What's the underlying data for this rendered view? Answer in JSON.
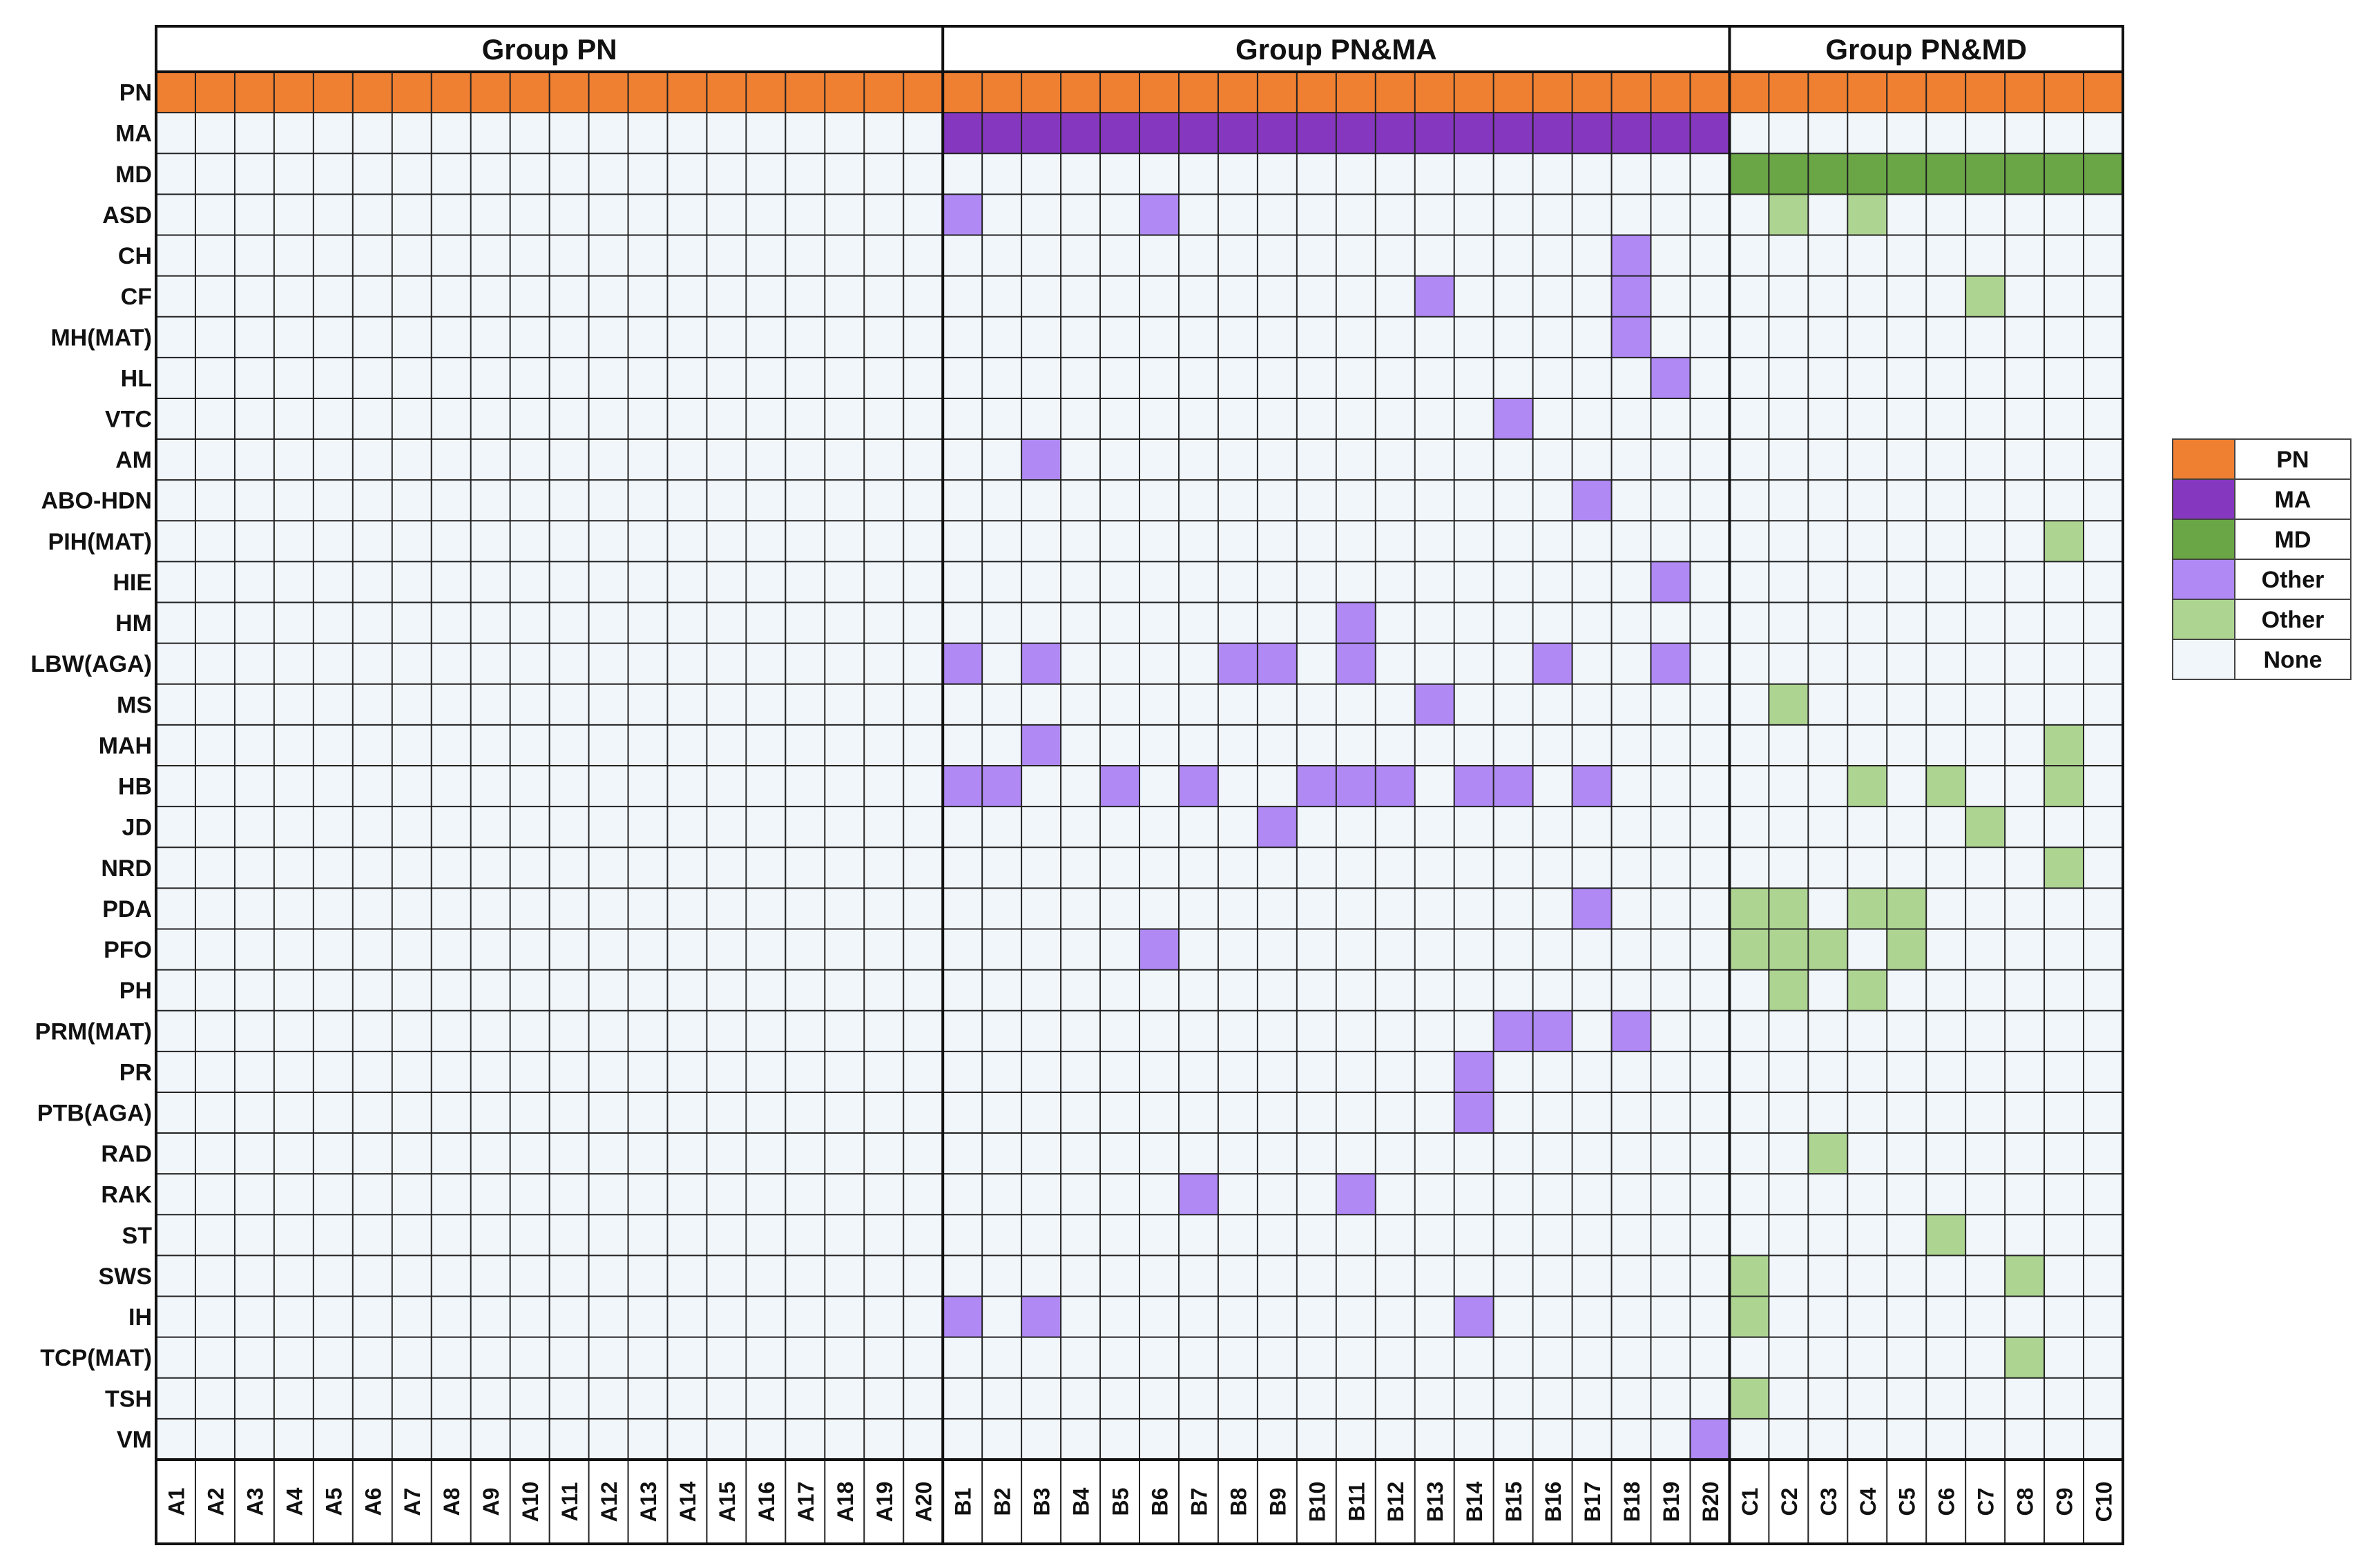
{
  "chart_data": {
    "type": "heatmap",
    "groups": [
      {
        "label": "Group PN",
        "columns": [
          "A1",
          "A2",
          "A3",
          "A4",
          "A5",
          "A6",
          "A7",
          "A8",
          "A9",
          "A10",
          "A11",
          "A12",
          "A13",
          "A14",
          "A15",
          "A16",
          "A17",
          "A18",
          "A19",
          "A20"
        ]
      },
      {
        "label": "Group PN&MA",
        "columns": [
          "B1",
          "B2",
          "B3",
          "B4",
          "B5",
          "B6",
          "B7",
          "B8",
          "B9",
          "B10",
          "B11",
          "B12",
          "B13",
          "B14",
          "B15",
          "B16",
          "B17",
          "B18",
          "B19",
          "B20"
        ]
      },
      {
        "label": "Group PN&MD",
        "columns": [
          "C1",
          "C2",
          "C3",
          "C4",
          "C5",
          "C6",
          "C7",
          "C8",
          "C9",
          "C10"
        ]
      }
    ],
    "rows": [
      "PN",
      "MA",
      "MD",
      "ASD",
      "CH",
      "CF",
      "MH(MAT)",
      "HL",
      "VTC",
      "AM",
      "ABO-HDN",
      "PIH(MAT)",
      "HIE",
      "HM",
      "LBW(AGA)",
      "MS",
      "MAH",
      "HB",
      "JD",
      "NRD",
      "PDA",
      "PFO",
      "PH",
      "PRM(MAT)",
      "PR",
      "PTB(AGA)",
      "RAD",
      "RAK",
      "ST",
      "SWS",
      "IH",
      "TCP(MAT)",
      "TSH",
      "VM"
    ],
    "legend": {
      "position": "right",
      "entries": [
        {
          "key": "pn",
          "label": "PN",
          "color": "#ef7f31"
        },
        {
          "key": "ma",
          "label": "MA",
          "color": "#8637bf"
        },
        {
          "key": "md",
          "label": "MD",
          "color": "#6aa646"
        },
        {
          "key": "other_ma",
          "label": "Other",
          "color": "#b089f5"
        },
        {
          "key": "other_md",
          "label": "Other",
          "color": "#add591"
        },
        {
          "key": "none",
          "label": "None",
          "color": "#f1f6fb"
        }
      ]
    },
    "cells": {
      "PN": {
        "pn": [
          "A1",
          "A2",
          "A3",
          "A4",
          "A5",
          "A6",
          "A7",
          "A8",
          "A9",
          "A10",
          "A11",
          "A12",
          "A13",
          "A14",
          "A15",
          "A16",
          "A17",
          "A18",
          "A19",
          "A20",
          "B1",
          "B2",
          "B3",
          "B4",
          "B5",
          "B6",
          "B7",
          "B8",
          "B9",
          "B10",
          "B11",
          "B12",
          "B13",
          "B14",
          "B15",
          "B16",
          "B17",
          "B18",
          "B19",
          "B20",
          "C1",
          "C2",
          "C3",
          "C4",
          "C5",
          "C6",
          "C7",
          "C8",
          "C9",
          "C10"
        ]
      },
      "MA": {
        "ma": [
          "B1",
          "B2",
          "B3",
          "B4",
          "B5",
          "B6",
          "B7",
          "B8",
          "B9",
          "B10",
          "B11",
          "B12",
          "B13",
          "B14",
          "B15",
          "B16",
          "B17",
          "B18",
          "B19",
          "B20"
        ]
      },
      "MD": {
        "md": [
          "C1",
          "C2",
          "C3",
          "C4",
          "C5",
          "C6",
          "C7",
          "C8",
          "C9",
          "C10"
        ]
      },
      "ASD": {
        "other_ma": [
          "B1",
          "B6"
        ],
        "other_md": [
          "C2",
          "C4"
        ]
      },
      "CH": {
        "other_ma": [
          "B18"
        ]
      },
      "CF": {
        "other_ma": [
          "B13",
          "B18"
        ],
        "other_md": [
          "C7"
        ]
      },
      "MH(MAT)": {
        "other_ma": [
          "B18"
        ]
      },
      "HL": {
        "other_ma": [
          "B19"
        ]
      },
      "VTC": {
        "other_ma": [
          "B15"
        ]
      },
      "AM": {
        "other_ma": [
          "B3"
        ]
      },
      "ABO-HDN": {
        "other_ma": [
          "B17"
        ]
      },
      "PIH(MAT)": {
        "other_md": [
          "C9"
        ]
      },
      "HIE": {
        "other_ma": [
          "B19"
        ]
      },
      "HM": {
        "other_ma": [
          "B11"
        ]
      },
      "LBW(AGA)": {
        "other_ma": [
          "B1",
          "B3",
          "B8",
          "B9",
          "B11",
          "B16",
          "B19"
        ]
      },
      "MS": {
        "other_ma": [
          "B13"
        ],
        "other_md": [
          "C2"
        ]
      },
      "MAH": {
        "other_ma": [
          "B3"
        ],
        "other_md": [
          "C9"
        ]
      },
      "HB": {
        "other_ma": [
          "B1",
          "B2",
          "B5",
          "B7",
          "B10",
          "B11",
          "B12",
          "B14",
          "B15",
          "B17"
        ],
        "other_md": [
          "C4",
          "C6",
          "C9"
        ]
      },
      "JD": {
        "other_ma": [
          "B9"
        ],
        "other_md": [
          "C7"
        ]
      },
      "NRD": {
        "other_md": [
          "C9"
        ]
      },
      "PDA": {
        "other_ma": [
          "B17"
        ],
        "other_md": [
          "C1",
          "C2",
          "C4",
          "C5"
        ]
      },
      "PFO": {
        "other_ma": [
          "B6"
        ],
        "other_md": [
          "C1",
          "C2",
          "C3",
          "C5"
        ]
      },
      "PH": {
        "other_md": [
          "C2",
          "C4"
        ]
      },
      "PRM(MAT)": {
        "other_ma": [
          "B15",
          "B16",
          "B18"
        ]
      },
      "PR": {
        "other_ma": [
          "B14"
        ]
      },
      "PTB(AGA)": {
        "other_ma": [
          "B14"
        ]
      },
      "RAD": {
        "other_md": [
          "C3"
        ]
      },
      "RAK": {
        "other_ma": [
          "B7",
          "B11"
        ]
      },
      "ST": {
        "other_md": [
          "C6"
        ]
      },
      "SWS": {
        "other_md": [
          "C1",
          "C8"
        ]
      },
      "IH": {
        "other_ma": [
          "B1",
          "B3",
          "B14"
        ],
        "other_md": [
          "C1"
        ]
      },
      "TCP(MAT)": {
        "other_md": [
          "C8"
        ]
      },
      "TSH": {
        "other_md": [
          "C1"
        ]
      },
      "VM": {
        "other_ma": [
          "B20"
        ]
      }
    }
  }
}
